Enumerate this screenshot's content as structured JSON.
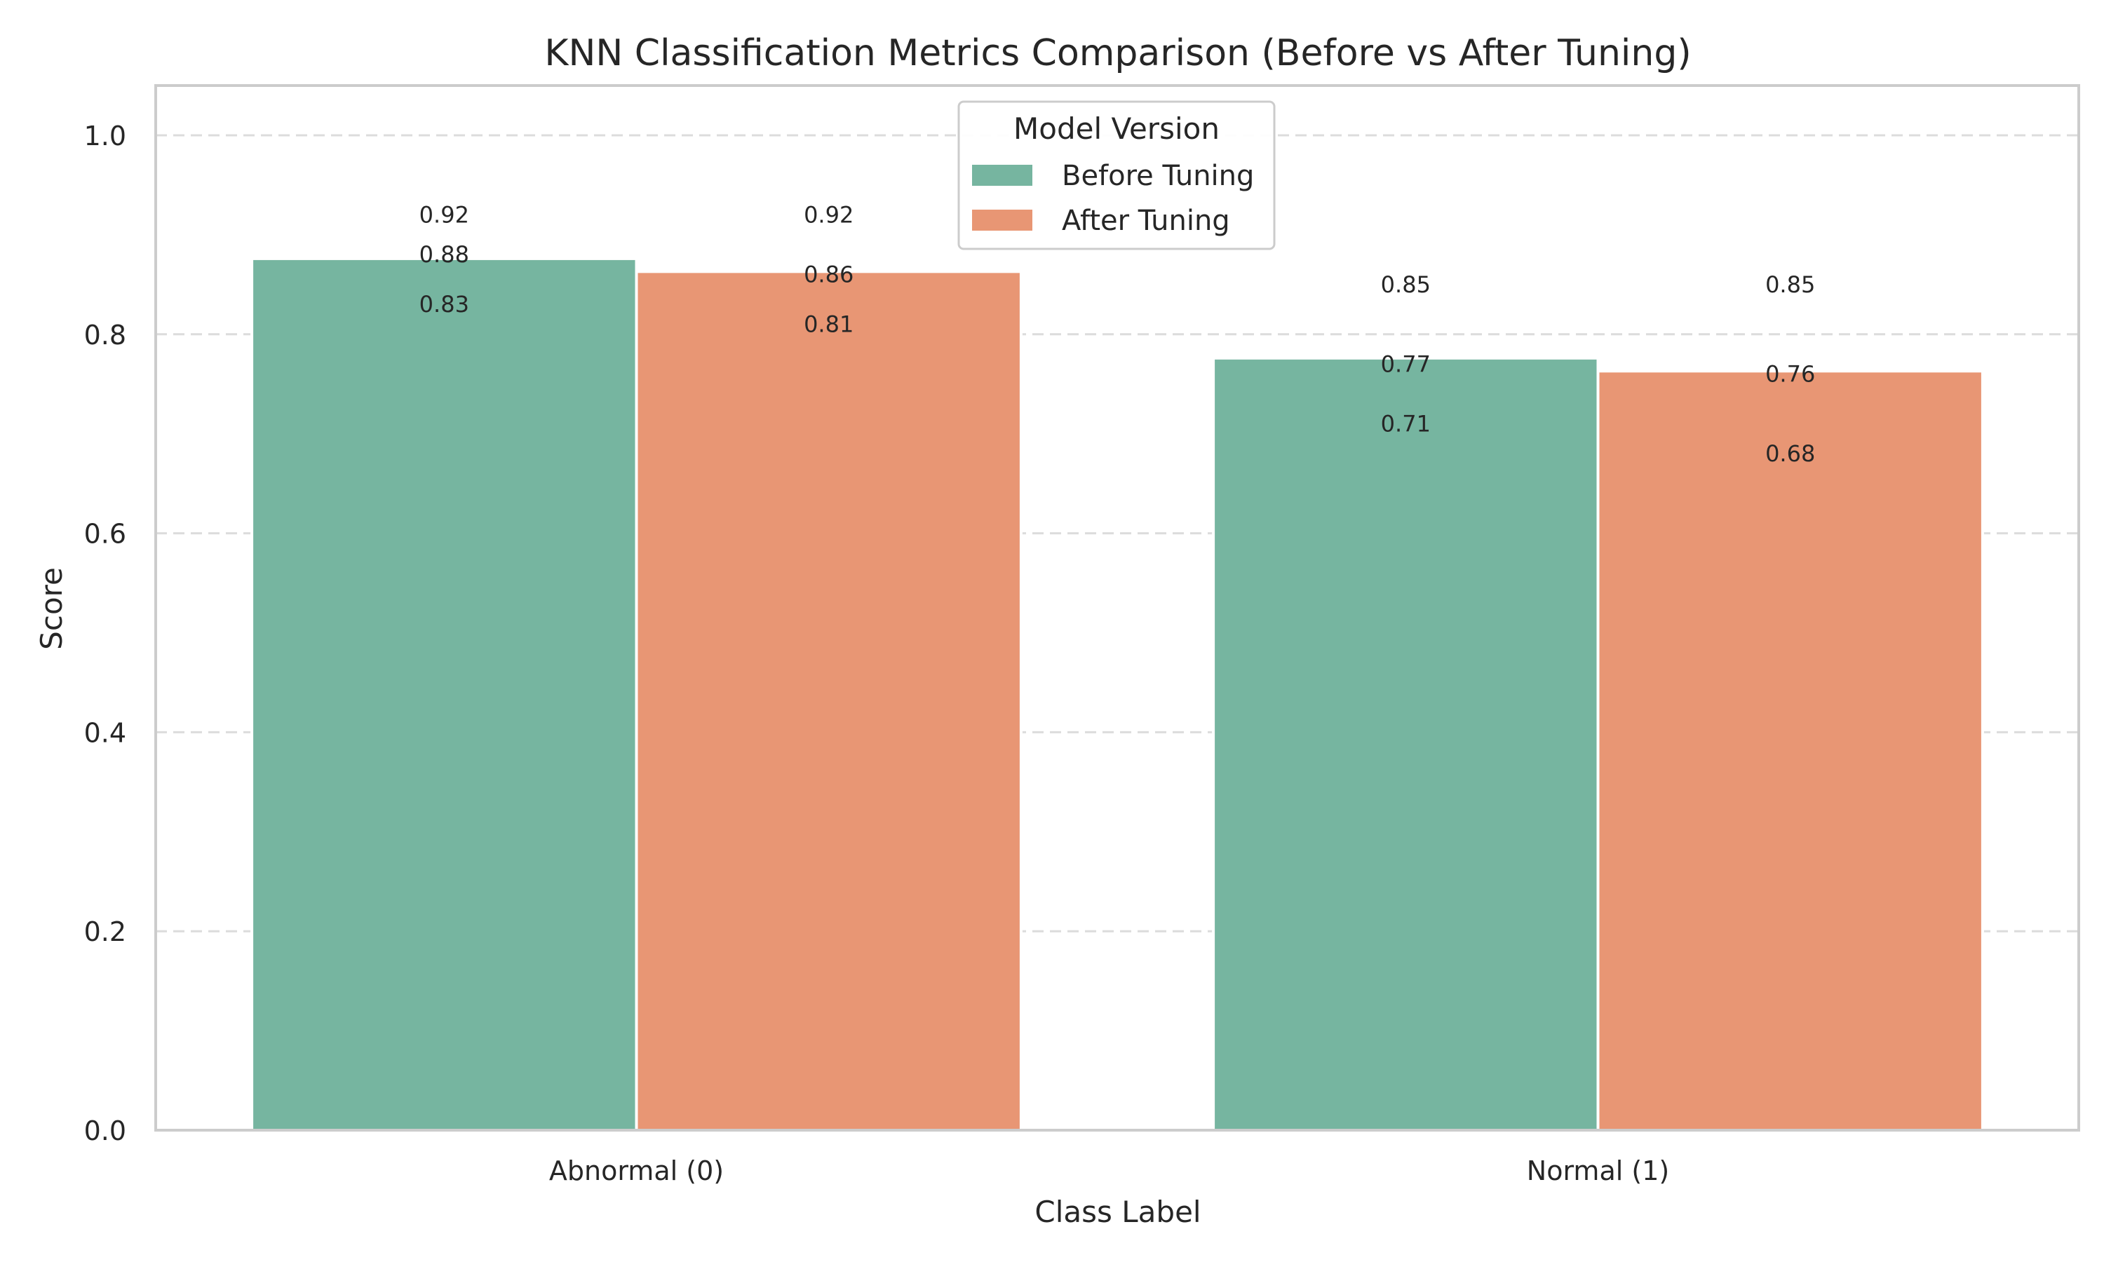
{
  "chart_data": {
    "type": "bar",
    "title": "KNN Classification Metrics Comparison (Before vs After Tuning)",
    "xlabel": "Class Label",
    "ylabel": "Score",
    "categories": [
      "Abnormal (0)",
      "Normal (1)"
    ],
    "ylim": [
      0,
      1.05
    ],
    "yticks": [
      "0.0",
      "0.2",
      "0.4",
      "0.6",
      "0.8",
      "1.0"
    ],
    "grid": "y-dashed",
    "legend": {
      "title": "Model Version",
      "placement": "top-center"
    },
    "series": [
      {
        "name": "Before Tuning",
        "color": "#76b5a0",
        "values": [
          0.876,
          0.776
        ]
      },
      {
        "name": "After Tuning",
        "color": "#e89674",
        "values": [
          0.863,
          0.763
        ]
      }
    ],
    "annotations": [
      {
        "category": 0,
        "series": 0,
        "values": [
          "0.92",
          "0.88",
          "0.83"
        ],
        "y": [
          0.92,
          0.88,
          0.83
        ]
      },
      {
        "category": 0,
        "series": 1,
        "values": [
          "0.92",
          "0.86",
          "0.81"
        ],
        "y": [
          0.92,
          0.86,
          0.81
        ]
      },
      {
        "category": 1,
        "series": 0,
        "values": [
          "0.85",
          "0.77",
          "0.71"
        ],
        "y": [
          0.85,
          0.77,
          0.71
        ]
      },
      {
        "category": 1,
        "series": 1,
        "values": [
          "0.85",
          "0.76",
          "0.68"
        ],
        "y": [
          0.85,
          0.76,
          0.68
        ]
      }
    ]
  }
}
